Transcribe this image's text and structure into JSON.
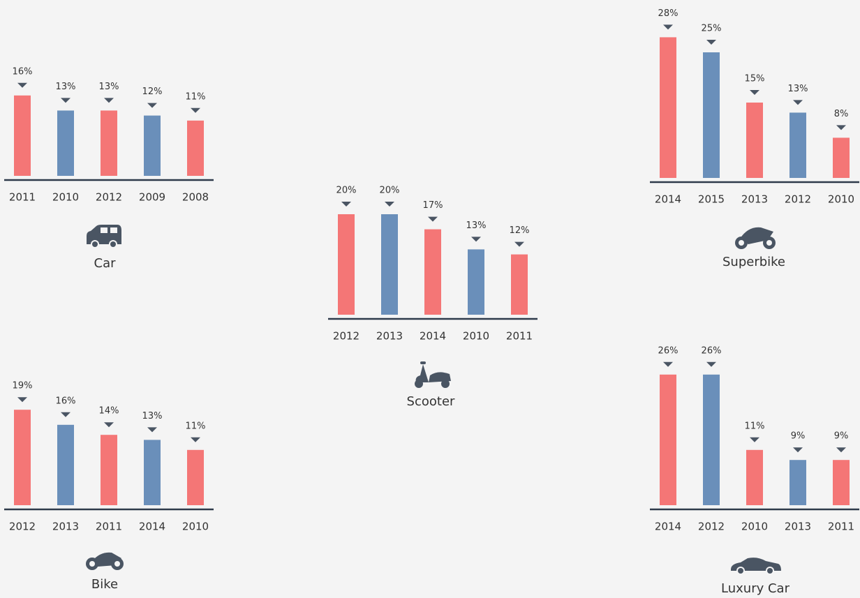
{
  "chart_data": [
    {
      "type": "bar",
      "title": "Car",
      "categories": [
        "2011",
        "2010",
        "2012",
        "2009",
        "2008"
      ],
      "values": [
        16,
        13,
        13,
        12,
        11
      ],
      "value_labels": [
        "16%",
        "13%",
        "13%",
        "12%",
        "11%"
      ],
      "colors": [
        "#f47676",
        "#6a8fba",
        "#f47676",
        "#6a8fba",
        "#f47676"
      ]
    },
    {
      "type": "bar",
      "title": "Scooter",
      "categories": [
        "2012",
        "2013",
        "2014",
        "2010",
        "2011"
      ],
      "values": [
        20,
        20,
        17,
        13,
        12
      ],
      "value_labels": [
        "20%",
        "20%",
        "17%",
        "13%",
        "12%"
      ],
      "colors": [
        "#f47676",
        "#6a8fba",
        "#f47676",
        "#6a8fba",
        "#f47676"
      ]
    },
    {
      "type": "bar",
      "title": "Superbike",
      "categories": [
        "2014",
        "2015",
        "2013",
        "2012",
        "2010"
      ],
      "values": [
        28,
        25,
        15,
        13,
        8
      ],
      "value_labels": [
        "28%",
        "25%",
        "15%",
        "13%",
        "8%"
      ],
      "colors": [
        "#f47676",
        "#6a8fba",
        "#f47676",
        "#6a8fba",
        "#f47676"
      ]
    },
    {
      "type": "bar",
      "title": "Bike",
      "categories": [
        "2012",
        "2013",
        "2011",
        "2014",
        "2010"
      ],
      "values": [
        19,
        16,
        14,
        13,
        11
      ],
      "value_labels": [
        "19%",
        "16%",
        "14%",
        "13%",
        "11%"
      ],
      "colors": [
        "#f47676",
        "#6a8fba",
        "#f47676",
        "#6a8fba",
        "#f47676"
      ]
    },
    {
      "type": "bar",
      "title": "Luxury Car",
      "categories": [
        "2014",
        "2012",
        "2010",
        "2013",
        "2011"
      ],
      "values": [
        26,
        26,
        11,
        9,
        9
      ],
      "value_labels": [
        "26%",
        "26%",
        "11%",
        "9%",
        "9%"
      ],
      "colors": [
        "#f47676",
        "#6a8fba",
        "#f47676",
        "#6a8fba",
        "#f47676"
      ]
    }
  ]
}
